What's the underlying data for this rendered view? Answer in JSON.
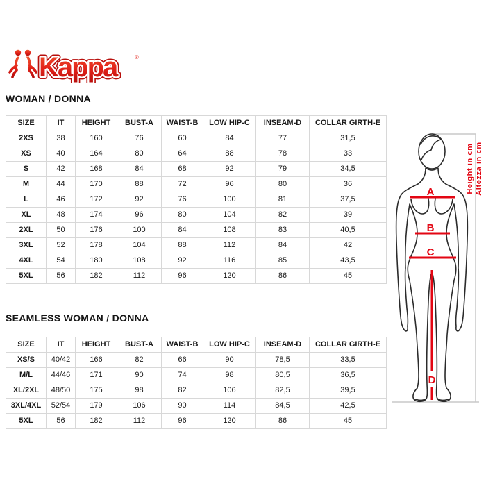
{
  "logo": {
    "brand": "Kappa",
    "registered": "®"
  },
  "sections": [
    {
      "title": "WOMAN / DONNA",
      "table": {
        "headers": [
          "SIZE",
          "IT",
          "HEIGHT",
          "BUST-A",
          "WAIST-B",
          "LOW HIP-C",
          "INSEAM-D",
          "COLLAR GIRTH-E"
        ],
        "rows": [
          [
            "2XS",
            "38",
            "160",
            "76",
            "60",
            "84",
            "77",
            "31,5"
          ],
          [
            "XS",
            "40",
            "164",
            "80",
            "64",
            "88",
            "78",
            "33"
          ],
          [
            "S",
            "42",
            "168",
            "84",
            "68",
            "92",
            "79",
            "34,5"
          ],
          [
            "M",
            "44",
            "170",
            "88",
            "72",
            "96",
            "80",
            "36"
          ],
          [
            "L",
            "46",
            "172",
            "92",
            "76",
            "100",
            "81",
            "37,5"
          ],
          [
            "XL",
            "48",
            "174",
            "96",
            "80",
            "104",
            "82",
            "39"
          ],
          [
            "2XL",
            "50",
            "176",
            "100",
            "84",
            "108",
            "83",
            "40,5"
          ],
          [
            "3XL",
            "52",
            "178",
            "104",
            "88",
            "112",
            "84",
            "42"
          ],
          [
            "4XL",
            "54",
            "180",
            "108",
            "92",
            "116",
            "85",
            "43,5"
          ],
          [
            "5XL",
            "56",
            "182",
            "112",
            "96",
            "120",
            "86",
            "45"
          ]
        ]
      }
    },
    {
      "title": "SEAMLESS WOMAN / DONNA",
      "table": {
        "headers": [
          "SIZE",
          "IT",
          "HEIGHT",
          "BUST-A",
          "WAIST-B",
          "LOW HIP-C",
          "INSEAM-D",
          "COLLAR GIRTH-E"
        ],
        "rows": [
          [
            "XS/S",
            "40/42",
            "166",
            "82",
            "66",
            "90",
            "78,5",
            "33,5"
          ],
          [
            "M/L",
            "44/46",
            "171",
            "90",
            "74",
            "98",
            "80,5",
            "36,5"
          ],
          [
            "XL/2XL",
            "48/50",
            "175",
            "98",
            "82",
            "106",
            "82,5",
            "39,5"
          ],
          [
            "3XL/4XL",
            "52/54",
            "179",
            "106",
            "90",
            "114",
            "84,5",
            "42,5"
          ],
          [
            "5XL",
            "56",
            "182",
            "112",
            "96",
            "120",
            "86",
            "45"
          ]
        ]
      }
    }
  ],
  "figure": {
    "labels": {
      "bust": "A",
      "waist": "B",
      "hip": "C",
      "inseam": "D"
    },
    "height_label_en": "Height in cm",
    "height_label_it": "Altezza in cm"
  },
  "colors": {
    "accent_red": "#e30613",
    "logo_red": "#e2231a",
    "table_border": "#d8d8d8",
    "dim_line_gray": "#c9c9c9",
    "body_outline": "#2b2b2b"
  }
}
